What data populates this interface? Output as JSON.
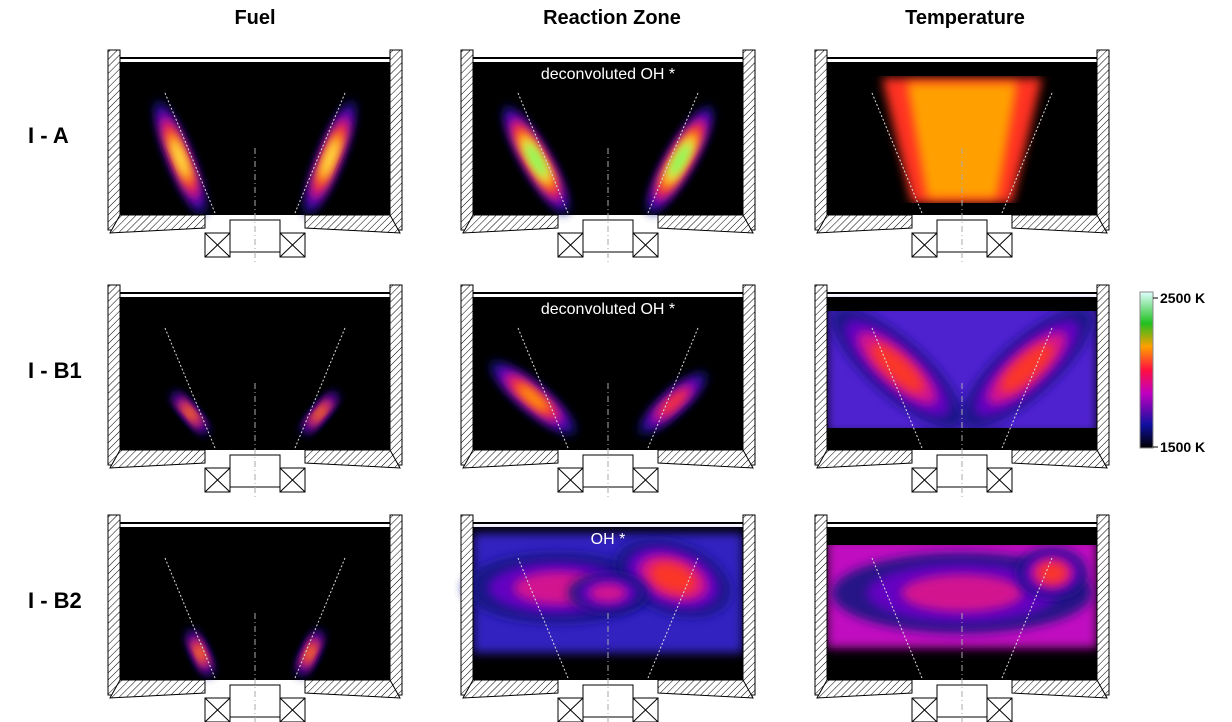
{
  "figure": {
    "columns": [
      "Fuel",
      "Reaction Zone",
      "Temperature"
    ],
    "rows": [
      "I - A",
      "I - B1",
      "I - B2"
    ],
    "annotations": {
      "0": {
        "1": "deconvoluted OH *"
      },
      "1": {
        "1": "deconvoluted OH *"
      },
      "2": {
        "1": "OH *"
      }
    },
    "colorbar": {
      "max_label": "2500 K",
      "min_label": "1500 K"
    }
  }
}
